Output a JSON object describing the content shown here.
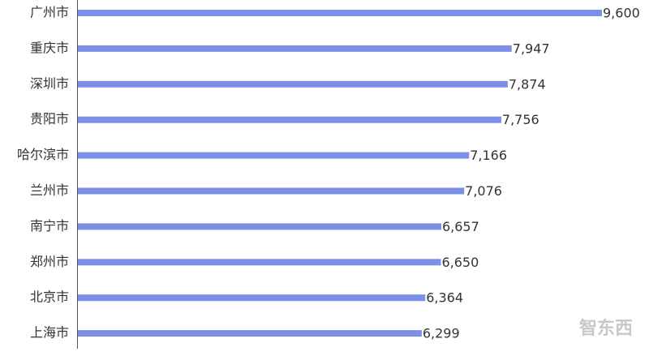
{
  "chart_data": {
    "type": "bar",
    "orientation": "horizontal",
    "categories": [
      "广州市",
      "重庆市",
      "深圳市",
      "贵阳市",
      "哈尔滨市",
      "兰州市",
      "南宁市",
      "郑州市",
      "北京市",
      "上海市"
    ],
    "values": [
      9600,
      7947,
      7874,
      7756,
      7166,
      7076,
      6657,
      6650,
      6364,
      6299
    ],
    "value_labels": [
      "9,600",
      "7,947",
      "7,874",
      "7,756",
      "7,166",
      "7,076",
      "6,657",
      "6,650",
      "6,364",
      "6,299"
    ],
    "color": "#7b8fe6"
  },
  "watermark": "智东西"
}
